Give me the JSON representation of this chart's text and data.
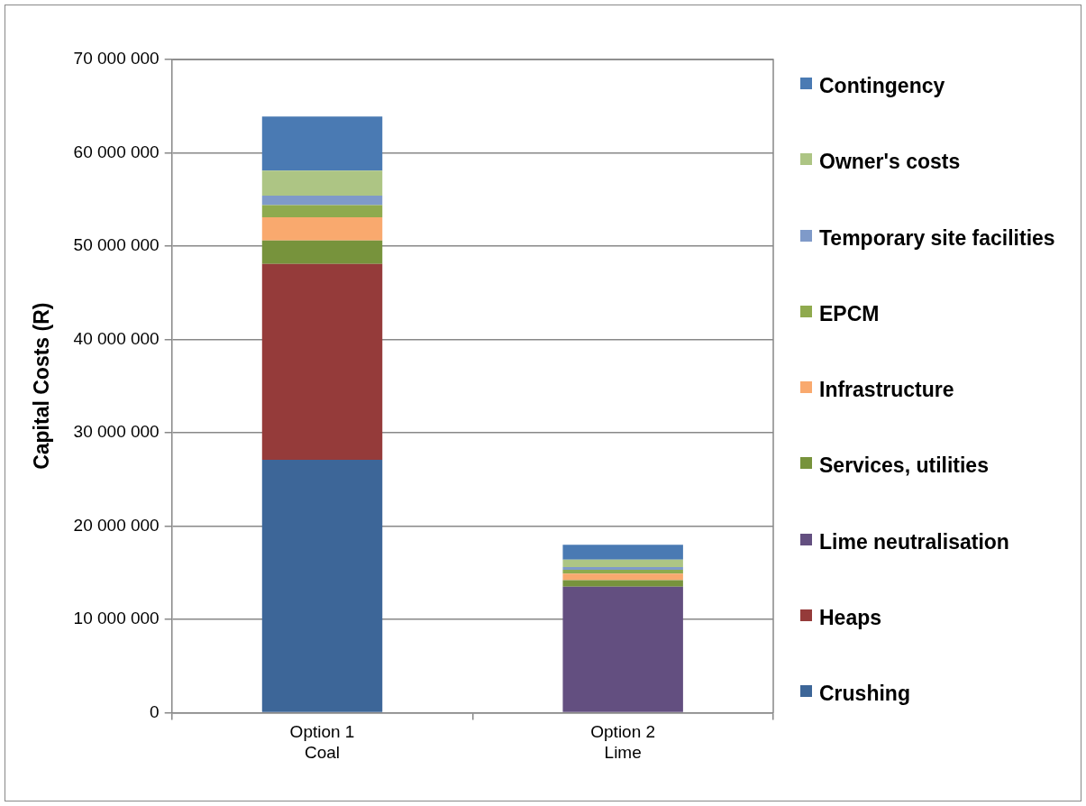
{
  "chart_data": {
    "type": "bar",
    "stacked": true,
    "ylabel": "Capital Costs (R)",
    "categories": [
      "Option 1\nCoal",
      "Option 2\nLime"
    ],
    "series": [
      {
        "name": "Crushing",
        "color": "#3d6698",
        "values": [
          27100000.0,
          null
        ]
      },
      {
        "name": "Heaps",
        "color": "#953b3a",
        "values": [
          21000000.0,
          null
        ]
      },
      {
        "name": "Lime neutralisation",
        "color": "#634f80",
        "values": [
          null,
          13500000.0
        ]
      },
      {
        "name": "Services, utilities",
        "color": "#77933c",
        "values": [
          2500000.0,
          700000.0
        ]
      },
      {
        "name": "Infrastructure",
        "color": "#f9a96e",
        "values": [
          2500000.0,
          700000.0
        ]
      },
      {
        "name": "EPCM",
        "color": "#8faa4e",
        "values": [
          1300000.0,
          400000.0
        ]
      },
      {
        "name": "Temporary site facilities",
        "color": "#7f9ac9",
        "values": [
          1000000.0,
          300000.0
        ]
      },
      {
        "name": "Owner's costs",
        "color": "#adc584",
        "values": [
          2700000.0,
          800000.0
        ]
      },
      {
        "name": "Contingency",
        "color": "#4a7ab3",
        "values": [
          5800000.0,
          1600000.0
        ]
      }
    ],
    "ylim": [
      0,
      70000000
    ],
    "yticks": [
      {
        "value": 0,
        "label": "0"
      },
      {
        "value": 10000000,
        "label": "10 000 000"
      },
      {
        "value": 20000000,
        "label": "20 000 000"
      },
      {
        "value": 30000000,
        "label": "30 000 000"
      },
      {
        "value": 40000000,
        "label": "40 000 000"
      },
      {
        "value": 50000000,
        "label": "50 000 000"
      },
      {
        "value": 60000000,
        "label": "60 000 000"
      },
      {
        "value": 70000000,
        "label": "70 000 000"
      }
    ],
    "grid": "y",
    "legend": "right"
  }
}
